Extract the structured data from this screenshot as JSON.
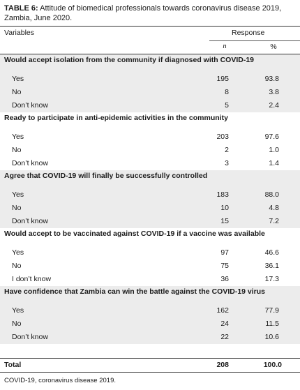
{
  "caption": {
    "label": "TABLE 6:",
    "text": " Attitude of biomedical professionals towards coronavirus disease 2019, Zambia, June 2020."
  },
  "header": {
    "variables": "Variables",
    "response": "Response",
    "n": "n",
    "pct": "%"
  },
  "groups": [
    {
      "question": "Would accept isolation from the community if diagnosed with COVID-19",
      "rows": [
        {
          "label": "Yes",
          "n": "195",
          "pct": "93.8"
        },
        {
          "label": "No",
          "n": "8",
          "pct": "3.8"
        },
        {
          "label": "Don’t know",
          "n": "5",
          "pct": "2.4"
        }
      ]
    },
    {
      "question": "Ready to participate in anti-epidemic activities in the community",
      "rows": [
        {
          "label": "Yes",
          "n": "203",
          "pct": "97.6"
        },
        {
          "label": "No",
          "n": "2",
          "pct": "1.0"
        },
        {
          "label": "Don’t know",
          "n": "3",
          "pct": "1.4"
        }
      ]
    },
    {
      "question": "Agree that COVID-19 will finally be successfully controlled",
      "rows": [
        {
          "label": "Yes",
          "n": "183",
          "pct": "88.0"
        },
        {
          "label": "No",
          "n": "10",
          "pct": "4.8"
        },
        {
          "label": "Don’t know",
          "n": "15",
          "pct": "7.2"
        }
      ]
    },
    {
      "question": "Would accept to be vaccinated against COVID-19 if a vaccine was available",
      "rows": [
        {
          "label": "Yes",
          "n": "97",
          "pct": "46.6"
        },
        {
          "label": "No",
          "n": "75",
          "pct": "36.1"
        },
        {
          "label": "I don’t know",
          "n": "36",
          "pct": "17.3"
        }
      ]
    },
    {
      "question": "Have confidence that Zambia can win the battle against the COVID-19 virus",
      "rows": [
        {
          "label": "Yes",
          "n": "162",
          "pct": "77.9"
        },
        {
          "label": "No",
          "n": "24",
          "pct": "11.5"
        },
        {
          "label": "Don’t know",
          "n": "22",
          "pct": "10.6"
        }
      ]
    }
  ],
  "total": {
    "label": "Total",
    "n": "208",
    "pct": "100.0"
  },
  "footnote": "COVID-19, coronavirus disease 2019."
}
